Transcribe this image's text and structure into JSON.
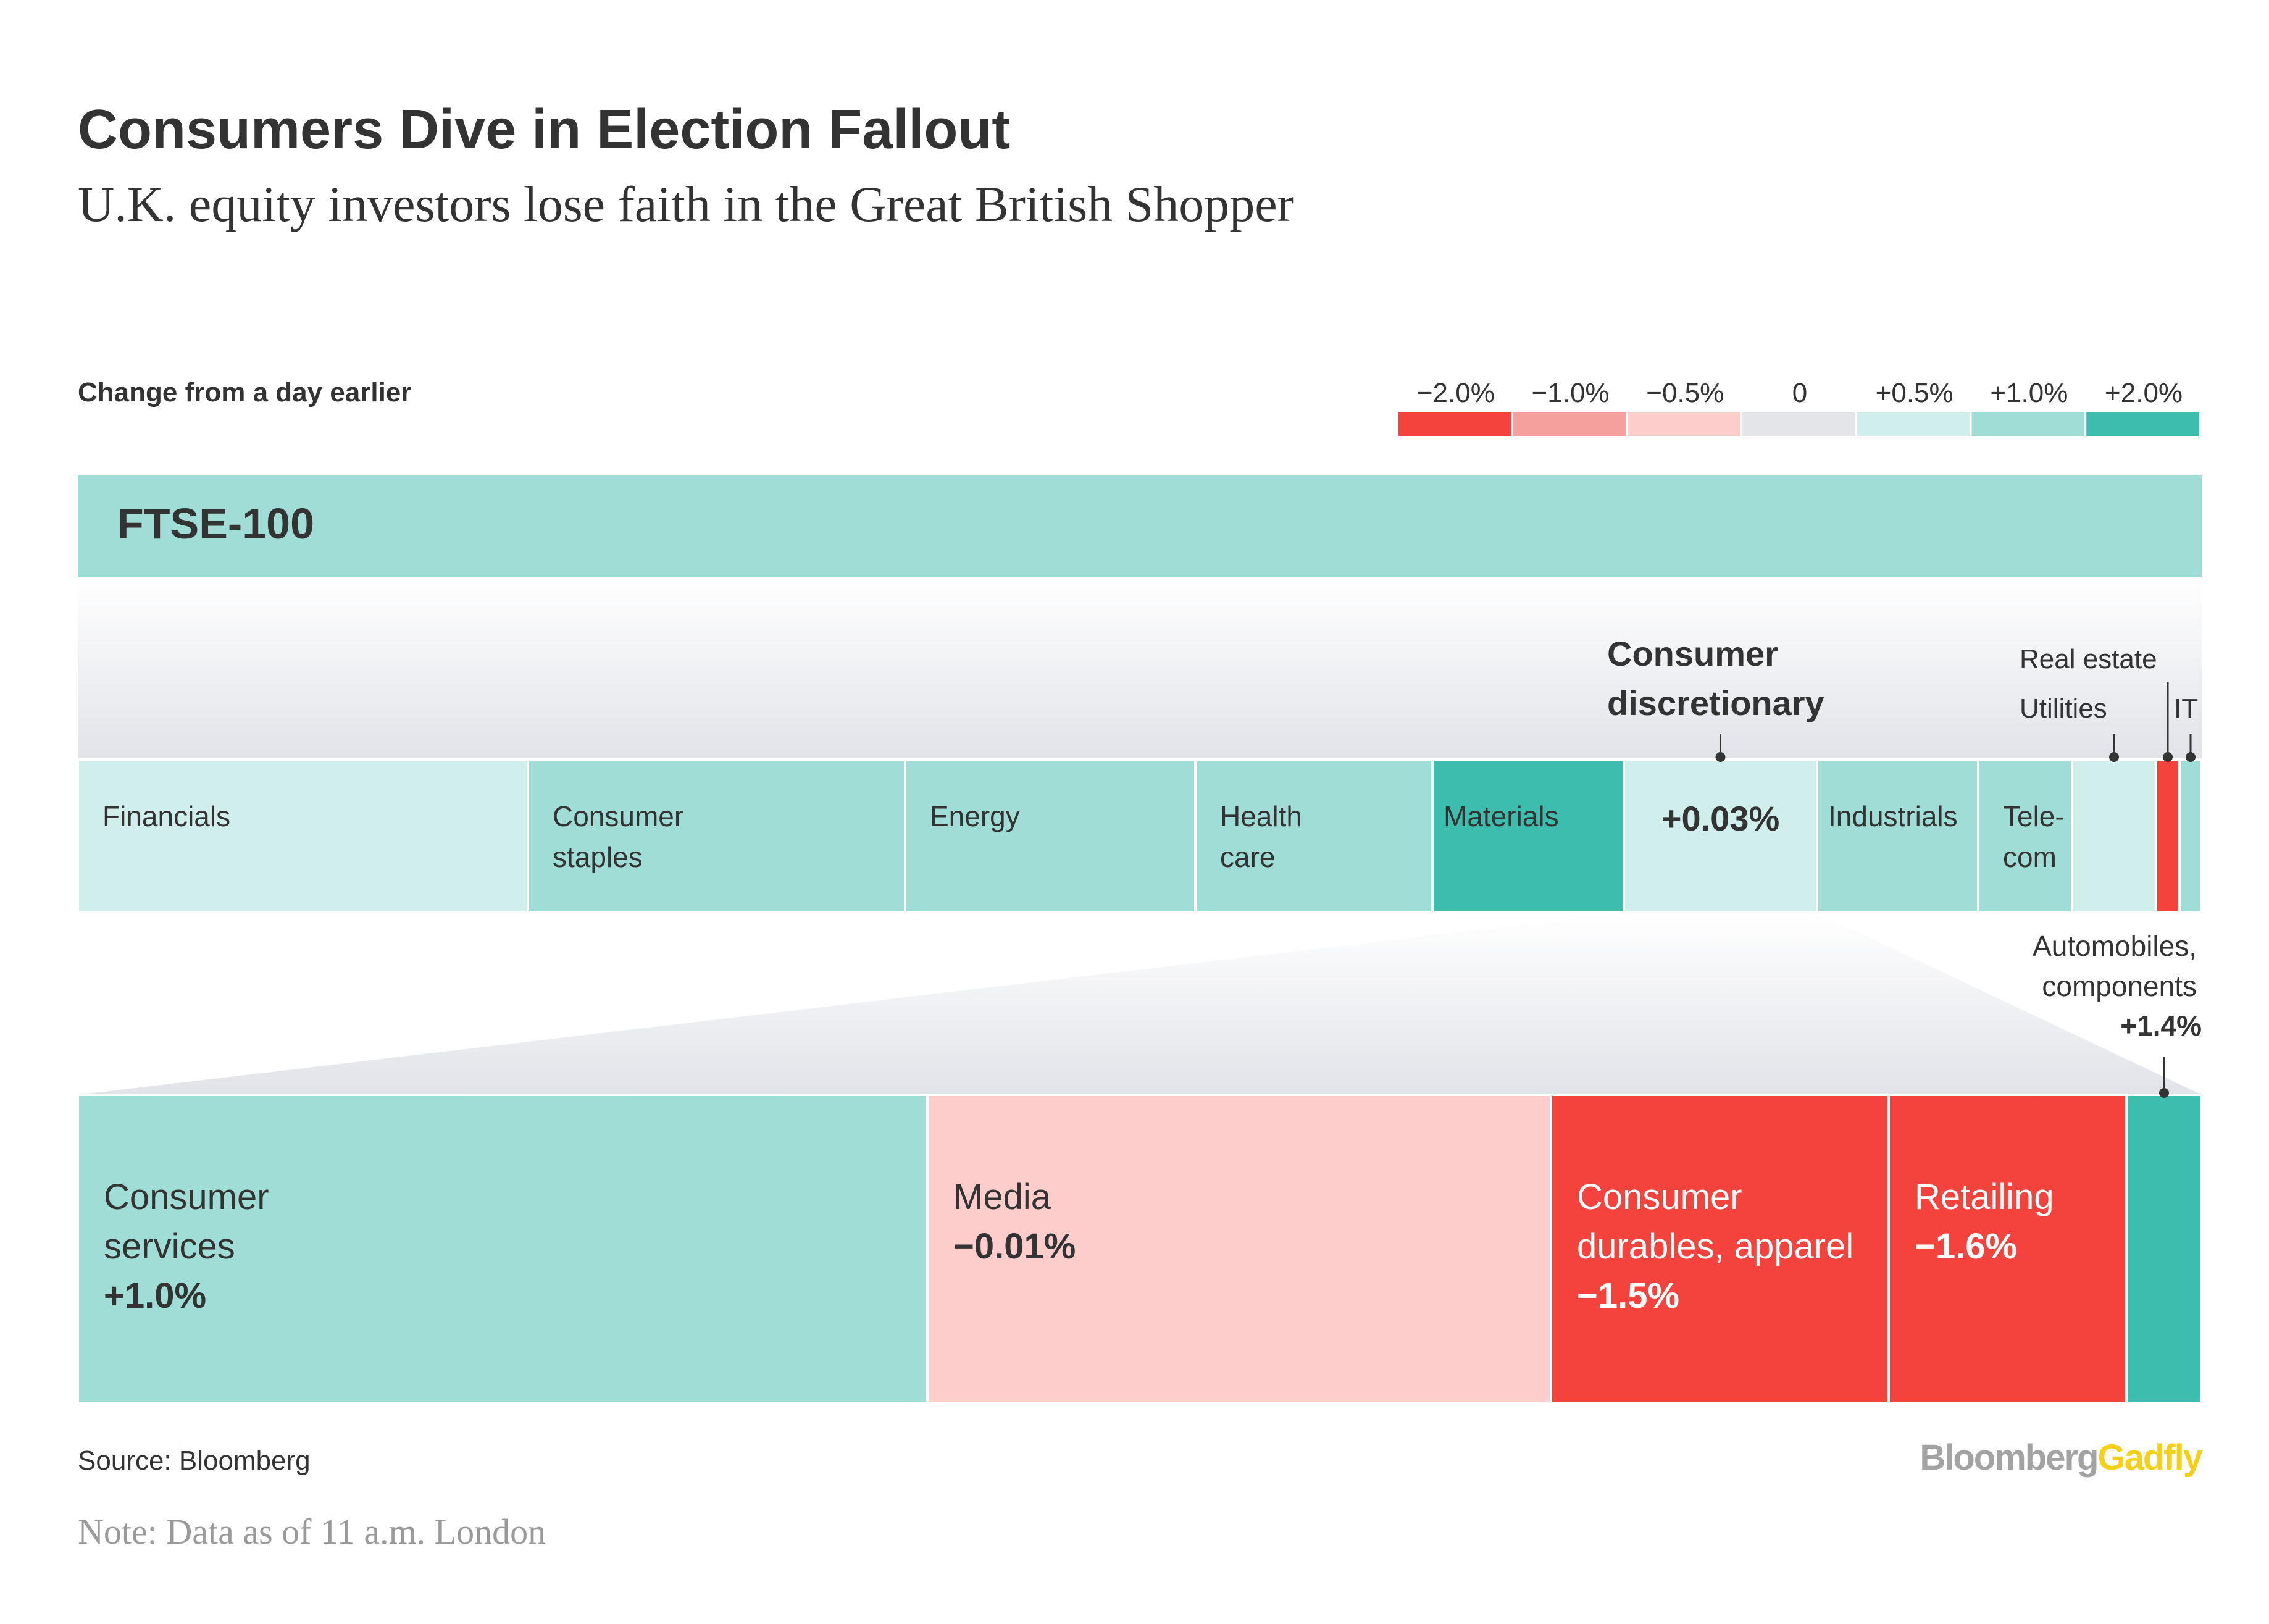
{
  "header": {
    "title": "Consumers Dive in Election Fallout",
    "subtitle": "U.K. equity investors lose faith in the Great British Shopper"
  },
  "footer": {
    "source": "Source: Bloomberg",
    "note": "Note: Data as of 11 a.m. London",
    "logo_left": "Bloomberg",
    "logo_right": "Gadfly"
  },
  "colors": {
    "neg_2": "#f4433c",
    "neg_1": "#f5a09c",
    "neg_05": "#fdcdcb",
    "zero": "#e3e5e9",
    "pos_05": "#d0efec",
    "pos_1": "#9fddd6",
    "pos_2": "#3dbdad",
    "text_dark": "#333333",
    "text_grey": "#9a9a9a",
    "logo_grey": "#a3a3a3",
    "logo_yellow": "#f5cf1a"
  },
  "chart_data": {
    "type": "heatmap",
    "legend_title": "Change from a day earlier",
    "legend": [
      "−2.0%",
      "−1.0%",
      "−0.5%",
      "0",
      "+0.5%",
      "+1.0%",
      "+2.0%"
    ],
    "index_label": "FTSE-100",
    "sectors": [
      {
        "name": "Financials",
        "color": "pos_05"
      },
      {
        "name": "Consumer staples",
        "lines": [
          "Consumer",
          "staples"
        ],
        "color": "pos_1"
      },
      {
        "name": "Energy",
        "color": "pos_1"
      },
      {
        "name": "Health care",
        "lines": [
          "Health",
          "care"
        ],
        "color": "pos_1"
      },
      {
        "name": "Materials",
        "color": "pos_2"
      },
      {
        "name": "Consumer discretionary",
        "header_lines": [
          "Consumer",
          "discretionary"
        ],
        "value": "+0.03%",
        "color": "pos_05",
        "highlighted": true
      },
      {
        "name": "Industrials",
        "color": "pos_1"
      },
      {
        "name": "Telecom",
        "lines": [
          "Tele-",
          "com"
        ],
        "color": "pos_1"
      },
      {
        "name": "Utilities",
        "color": "pos_05",
        "callout": true
      },
      {
        "name": "Real estate",
        "color": "neg_2",
        "callout": true
      },
      {
        "name": "IT",
        "color": "pos_1",
        "callout": true
      }
    ],
    "breakdown_title": "Consumer discretionary",
    "breakdown": [
      {
        "name": "Consumer services",
        "lines": [
          "Consumer",
          "services"
        ],
        "value": "+1.0%",
        "color": "pos_1"
      },
      {
        "name": "Media",
        "lines": [
          "Media"
        ],
        "value": "−0.01%",
        "color": "neg_05"
      },
      {
        "name": "Consumer durables, apparel",
        "lines": [
          "Consumer",
          "durables, apparel"
        ],
        "value": "−1.5%",
        "color": "neg_2",
        "light_text": true
      },
      {
        "name": "Retailing",
        "lines": [
          "Retailing"
        ],
        "value": "−1.6%",
        "color": "neg_2",
        "light_text": true
      },
      {
        "name": "Automobiles, components",
        "callout_lines": [
          "Automobiles,",
          "components"
        ],
        "value": "+1.4%",
        "color": "pos_2"
      }
    ]
  }
}
